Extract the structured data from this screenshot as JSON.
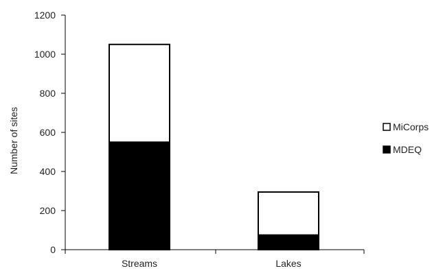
{
  "chart_data": {
    "type": "bar",
    "stacked": true,
    "categories": [
      "Streams",
      "Lakes"
    ],
    "series": [
      {
        "name": "MDEQ",
        "values": [
          550,
          75
        ],
        "color": "#000000"
      },
      {
        "name": "MiCorps",
        "values": [
          500,
          220
        ],
        "color": "#ffffff"
      }
    ],
    "title": "",
    "xlabel": "",
    "ylabel": "Number of sites",
    "ylim": [
      0,
      1200
    ],
    "yticks": [
      0,
      200,
      400,
      600,
      800,
      1000,
      1200
    ],
    "grid": false,
    "legend_position": "right",
    "legend_order": [
      "MiCorps",
      "MDEQ"
    ]
  }
}
